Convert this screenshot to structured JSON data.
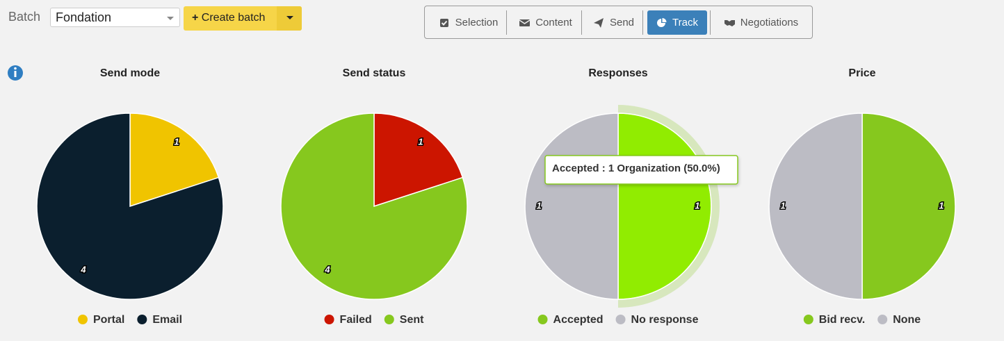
{
  "toolbar": {
    "batch_label": "Batch",
    "batch_select": "Fondation",
    "create_button": "Create batch",
    "tabs": [
      "Selection",
      "Content",
      "Send",
      "Track",
      "Negotiations"
    ],
    "active_tab": 3
  },
  "chart_data": [
    {
      "type": "pie",
      "title": "Send mode",
      "categories": [
        "Portal",
        "Email"
      ],
      "values": [
        1,
        4
      ],
      "colors": [
        "#f0c400",
        "#0b1f2e"
      ]
    },
    {
      "type": "pie",
      "title": "Send status",
      "categories": [
        "Failed",
        "Sent"
      ],
      "values": [
        1,
        4
      ],
      "colors": [
        "#cc1500",
        "#86c81e"
      ]
    },
    {
      "type": "pie",
      "title": "Responses",
      "categories": [
        "Accepted",
        "No response"
      ],
      "values": [
        1,
        1
      ],
      "colors": [
        "#86c81e",
        "#bcbcc4"
      ],
      "highlight": 0,
      "tooltip": "Accepted : 1 Organization (50.0%)"
    },
    {
      "type": "pie",
      "title": "Price",
      "categories": [
        "Bid recv.",
        "None"
      ],
      "values": [
        1,
        1
      ],
      "colors": [
        "#86c81e",
        "#bcbcc4"
      ]
    }
  ]
}
